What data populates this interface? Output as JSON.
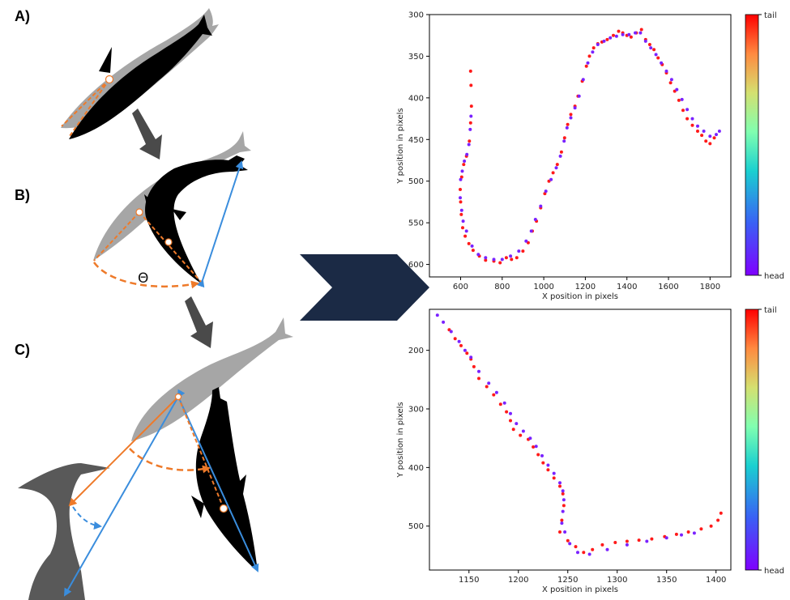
{
  "panels": {
    "a_label": "A)",
    "b_label": "B)",
    "c_label": "C)",
    "theta_symbol": "Θ"
  },
  "colors": {
    "fish_dark": "#000000",
    "fish_ghost": "#a6a6a6",
    "heron": "#595959",
    "orange": "#ee7a2a",
    "blue": "#3a8ddd",
    "step_arrow": "#4a4a4a",
    "chevron": "#1b2a45"
  },
  "chart_data": [
    {
      "type": "scatter",
      "xlabel": "X position in pixels",
      "ylabel": "Y position in pixels",
      "xlim": [
        450,
        1900
      ],
      "ylim": [
        615,
        300
      ],
      "y_inverted": true,
      "xticks": [
        600,
        800,
        1000,
        1200,
        1400,
        1600,
        1800
      ],
      "yticks": [
        300,
        350,
        400,
        450,
        500,
        550,
        600
      ],
      "colorbar": {
        "top_label": "tail",
        "bottom_label": "head",
        "colormap": "rainbow"
      },
      "series": [
        {
          "name": "tail",
          "color": "#ff1a1a",
          "points": [
            [
              648,
              368
            ],
            [
              650,
              385
            ],
            [
              652,
              410
            ],
            [
              648,
              430
            ],
            [
              642,
              452
            ],
            [
              628,
              470
            ],
            [
              615,
              480
            ],
            [
              605,
              495
            ],
            [
              598,
              510
            ],
            [
              600,
              525
            ],
            [
              603,
              540
            ],
            [
              610,
              556
            ],
            [
              622,
              566
            ],
            [
              640,
              575
            ],
            [
              660,
              583
            ],
            [
              690,
              590
            ],
            [
              720,
              595
            ],
            [
              760,
              596
            ],
            [
              790,
              598
            ],
            [
              820,
              592
            ],
            [
              845,
              594
            ],
            [
              870,
              592
            ],
            [
              900,
              584
            ],
            [
              925,
              574
            ],
            [
              945,
              560
            ],
            [
              965,
              548
            ],
            [
              985,
              532
            ],
            [
              1005,
              515
            ],
            [
              1025,
              500
            ],
            [
              1045,
              490
            ],
            [
              1065,
              480
            ],
            [
              1085,
              465
            ],
            [
              1100,
              448
            ],
            [
              1115,
              432
            ],
            [
              1130,
              420
            ],
            [
              1150,
              410
            ],
            [
              1165,
              398
            ],
            [
              1185,
              380
            ],
            [
              1205,
              362
            ],
            [
              1220,
              350
            ],
            [
              1240,
              340
            ],
            [
              1260,
              335
            ],
            [
              1280,
              333
            ],
            [
              1305,
              330
            ],
            [
              1335,
              325
            ],
            [
              1360,
              320
            ],
            [
              1380,
              322
            ],
            [
              1400,
              325
            ],
            [
              1420,
              327
            ],
            [
              1445,
              322
            ],
            [
              1470,
              318
            ],
            [
              1490,
              330
            ],
            [
              1510,
              336
            ],
            [
              1530,
              342
            ],
            [
              1550,
              352
            ],
            [
              1570,
              360
            ],
            [
              1590,
              370
            ],
            [
              1610,
              382
            ],
            [
              1630,
              392
            ],
            [
              1650,
              403
            ],
            [
              1670,
              415
            ],
            [
              1690,
              425
            ],
            [
              1715,
              433
            ],
            [
              1740,
              440
            ],
            [
              1760,
              445
            ],
            [
              1780,
              452
            ],
            [
              1800,
              455
            ],
            [
              1820,
              448
            ]
          ]
        },
        {
          "name": "head",
          "color": "#7a22ff",
          "points": [
            [
              650,
              422
            ],
            [
              646,
              438
            ],
            [
              640,
              456
            ],
            [
              630,
              468
            ],
            [
              618,
              476
            ],
            [
              608,
              488
            ],
            [
              600,
              498
            ],
            [
              598,
              520
            ],
            [
              605,
              535
            ],
            [
              612,
              548
            ],
            [
              628,
              560
            ],
            [
              655,
              578
            ],
            [
              685,
              588
            ],
            [
              720,
              592
            ],
            [
              760,
              594
            ],
            [
              800,
              594
            ],
            [
              840,
              590
            ],
            [
              880,
              584
            ],
            [
              915,
              572
            ],
            [
              940,
              560
            ],
            [
              960,
              546
            ],
            [
              985,
              530
            ],
            [
              1010,
              512
            ],
            [
              1035,
              498
            ],
            [
              1060,
              484
            ],
            [
              1080,
              470
            ],
            [
              1098,
              452
            ],
            [
              1112,
              436
            ],
            [
              1130,
              424
            ],
            [
              1150,
              412
            ],
            [
              1170,
              398
            ],
            [
              1190,
              378
            ],
            [
              1212,
              358
            ],
            [
              1235,
              345
            ],
            [
              1260,
              336
            ],
            [
              1290,
              332
            ],
            [
              1320,
              328
            ],
            [
              1350,
              326
            ],
            [
              1380,
              324
            ],
            [
              1410,
              324
            ],
            [
              1440,
              322
            ],
            [
              1465,
              322
            ],
            [
              1490,
              332
            ],
            [
              1515,
              340
            ],
            [
              1540,
              348
            ],
            [
              1565,
              358
            ],
            [
              1590,
              368
            ],
            [
              1615,
              378
            ],
            [
              1640,
              390
            ],
            [
              1665,
              402
            ],
            [
              1690,
              414
            ],
            [
              1715,
              425
            ],
            [
              1740,
              434
            ],
            [
              1770,
              440
            ],
            [
              1800,
              446
            ],
            [
              1830,
              444
            ],
            [
              1845,
              440
            ]
          ]
        }
      ]
    },
    {
      "type": "scatter",
      "xlabel": "X position in pixels",
      "ylabel": "Y position in pixels",
      "xlim": [
        1110,
        1415
      ],
      "ylim": [
        575,
        130
      ],
      "y_inverted": true,
      "xticks": [
        1150,
        1200,
        1250,
        1300,
        1350,
        1400
      ],
      "yticks": [
        200,
        300,
        400,
        500
      ],
      "colorbar": {
        "top_label": "tail",
        "bottom_label": "head",
        "colormap": "rainbow"
      },
      "series": [
        {
          "name": "tail",
          "color": "#ff1a1a",
          "points": [
            [
              1130,
              165
            ],
            [
              1136,
              180
            ],
            [
              1142,
              192
            ],
            [
              1148,
              205
            ],
            [
              1152,
              215
            ],
            [
              1155,
              228
            ],
            [
              1160,
              248
            ],
            [
              1168,
              262
            ],
            [
              1175,
              276
            ],
            [
              1182,
              292
            ],
            [
              1188,
              305
            ],
            [
              1192,
              320
            ],
            [
              1195,
              335
            ],
            [
              1202,
              345
            ],
            [
              1210,
              352
            ],
            [
              1215,
              365
            ],
            [
              1220,
              378
            ],
            [
              1225,
              392
            ],
            [
              1230,
              404
            ],
            [
              1236,
              418
            ],
            [
              1242,
              432
            ],
            [
              1245,
              445
            ],
            [
              1246,
              465
            ],
            [
              1244,
              490
            ],
            [
              1242,
              510
            ],
            [
              1250,
              525
            ],
            [
              1258,
              535
            ],
            [
              1266,
              545
            ],
            [
              1275,
              540
            ],
            [
              1285,
              532
            ],
            [
              1298,
              528
            ],
            [
              1310,
              526
            ],
            [
              1322,
              524
            ],
            [
              1335,
              522
            ],
            [
              1348,
              518
            ],
            [
              1360,
              514
            ],
            [
              1372,
              510
            ],
            [
              1385,
              505
            ],
            [
              1395,
              500
            ],
            [
              1402,
              490
            ],
            [
              1405,
              478
            ]
          ]
        },
        {
          "name": "head",
          "color": "#7a22ff",
          "points": [
            [
              1118,
              140
            ],
            [
              1124,
              152
            ],
            [
              1132,
              168
            ],
            [
              1140,
              185
            ],
            [
              1146,
              200
            ],
            [
              1152,
              212
            ],
            [
              1160,
              236
            ],
            [
              1170,
              256
            ],
            [
              1178,
              272
            ],
            [
              1186,
              290
            ],
            [
              1192,
              308
            ],
            [
              1198,
              325
            ],
            [
              1205,
              338
            ],
            [
              1212,
              350
            ],
            [
              1218,
              364
            ],
            [
              1224,
              380
            ],
            [
              1230,
              396
            ],
            [
              1236,
              410
            ],
            [
              1242,
              426
            ],
            [
              1245,
              440
            ],
            [
              1246,
              455
            ],
            [
              1245,
              475
            ],
            [
              1244,
              495
            ],
            [
              1247,
              510
            ],
            [
              1252,
              530
            ],
            [
              1260,
              545
            ],
            [
              1272,
              548
            ],
            [
              1290,
              540
            ],
            [
              1310,
              532
            ],
            [
              1330,
              526
            ],
            [
              1350,
              520
            ],
            [
              1365,
              515
            ],
            [
              1378,
              512
            ]
          ]
        }
      ]
    }
  ]
}
